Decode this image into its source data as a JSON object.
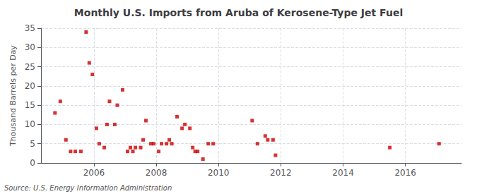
{
  "chart_data": {
    "type": "scatter",
    "title": "Monthly U.S. Imports from Aruba of Kerosene-Type Jet Fuel",
    "ylabel": "Thousand Barrels per Day",
    "annotations": [
      "Source: U.S. Energy Information Administration"
    ],
    "color": "#cc0000",
    "marker": "square",
    "grid": true,
    "xlim": [
      2004.3,
      2017.8
    ],
    "xticks": [
      2006,
      2008,
      2010,
      2012,
      2014,
      2016
    ],
    "ylim": [
      0,
      35
    ],
    "yticks": [
      0,
      5,
      10,
      15,
      20,
      25,
      30,
      35
    ],
    "x": [
      2004.75,
      2004.92,
      2005.1,
      2005.25,
      2005.4,
      2005.58,
      2005.75,
      2005.85,
      2005.95,
      2006.08,
      2006.17,
      2006.33,
      2006.42,
      2006.5,
      2006.67,
      2006.75,
      2006.92,
      2007.08,
      2007.17,
      2007.25,
      2007.33,
      2007.5,
      2007.58,
      2007.67,
      2007.83,
      2007.92,
      2008.08,
      2008.17,
      2008.33,
      2008.42,
      2008.5,
      2008.67,
      2008.83,
      2008.92,
      2009.08,
      2009.17,
      2009.25,
      2009.33,
      2009.5,
      2009.67,
      2009.83,
      2011.08,
      2011.25,
      2011.5,
      2011.58,
      2011.75,
      2011.83,
      2015.5,
      2017.08
    ],
    "values": [
      13,
      16,
      6,
      3,
      3,
      3,
      34,
      26,
      23,
      9,
      5,
      4,
      10,
      16,
      10,
      15,
      19,
      3,
      4,
      3,
      4,
      4,
      6,
      11,
      5,
      5,
      3,
      5,
      5,
      6,
      5,
      12,
      9,
      10,
      9,
      4,
      3,
      3,
      1,
      5,
      5,
      11,
      5,
      7,
      6,
      6,
      2,
      4,
      5
    ]
  }
}
